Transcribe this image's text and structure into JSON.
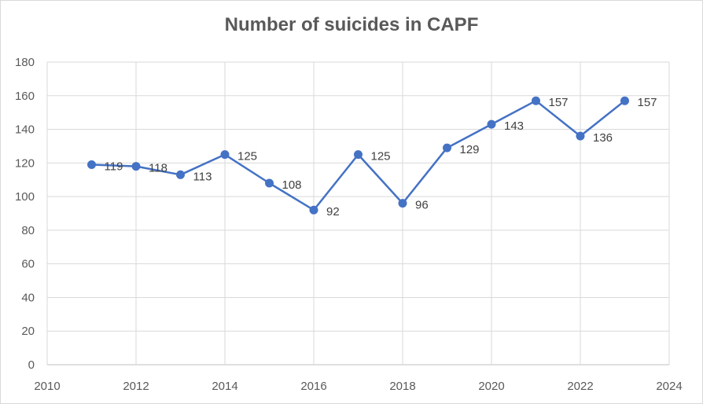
{
  "chart_data": {
    "type": "scatter",
    "title": "Number of suicides in CAPF",
    "xlabel": "",
    "ylabel": "",
    "x": [
      2011,
      2012,
      2013,
      2014,
      2015,
      2016,
      2017,
      2018,
      2019,
      2020,
      2021,
      2022,
      2023
    ],
    "series": [
      {
        "values": [
          119,
          118,
          113,
          125,
          108,
          92,
          125,
          96,
          129,
          143,
          157,
          136,
          157
        ],
        "color": "#4472c4",
        "marker": "circle",
        "line": "straight"
      }
    ],
    "xlim": [
      2010,
      2024
    ],
    "ylim": [
      0,
      180
    ],
    "xticks": [
      2010,
      2012,
      2014,
      2016,
      2018,
      2020,
      2022,
      2024
    ],
    "yticks": [
      0,
      20,
      40,
      60,
      80,
      100,
      120,
      140,
      160,
      180
    ],
    "grid": true,
    "data_labels": true,
    "legend": "none"
  }
}
